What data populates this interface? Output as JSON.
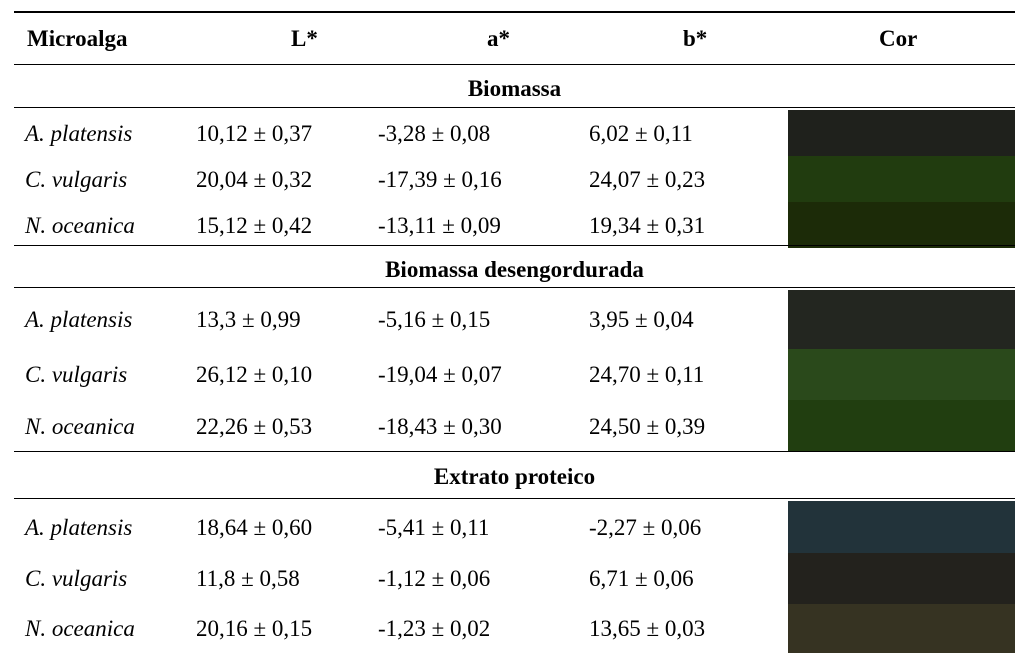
{
  "headers": [
    "Microalga",
    "L*",
    "a*",
    "b*",
    "Cor"
  ],
  "sections": [
    {
      "title": "Biomassa",
      "rows": [
        {
          "species": "A. platensis",
          "L": "10,12 ± 0,37",
          "a": "-3,28 ± 0,08",
          "b": "6,02 ± 0,11",
          "color": "#1f211c"
        },
        {
          "species": "C. vulgaris",
          "L": "20,04 ± 0,32",
          "a": "-17,39 ± 0,16",
          "b": "24,07 ± 0,23",
          "color": "#213c0f"
        },
        {
          "species": "N. oceanica",
          "L": "15,12 ± 0,42",
          "a": "-13,11 ± 0,09",
          "b": "19,34 ± 0,31",
          "color": "#1c2b08"
        }
      ]
    },
    {
      "title": "Biomassa desengordurada",
      "rows": [
        {
          "species": "A. platensis",
          "L": "13,3 ± 0,99",
          "a": "-5,16 ± 0,15",
          "b": "3,95 ± 0,04",
          "color": "#232620"
        },
        {
          "species": "C. vulgaris",
          "L": "26,12 ± 0,10",
          "a": "-19,04 ± 0,07",
          "b": "24,70 ± 0,11",
          "color": "#2a491b"
        },
        {
          "species": "N. oceanica",
          "L": "22,26 ± 0,53",
          "a": "-18,43 ± 0,30",
          "b": "24,50 ± 0,39",
          "color": "#213e10"
        }
      ]
    },
    {
      "title": "Extrato proteico",
      "rows": [
        {
          "species": "A. platensis",
          "L": "18,64 ± 0,60",
          "a": "-5,41 ± 0,11",
          "b": "-2,27 ± 0,06",
          "color": "#22333a"
        },
        {
          "species": "C. vulgaris",
          "L": "11,8 ± 0,58",
          "a": "-1,12 ± 0,06",
          "b": "6,71 ± 0,06",
          "color": "#23221d"
        },
        {
          "species": "N. oceanica",
          "L": "20,16 ± 0,15",
          "a": "-1,23 ± 0,02",
          "b": "13,65 ± 0,03",
          "color": "#363322"
        }
      ]
    }
  ]
}
